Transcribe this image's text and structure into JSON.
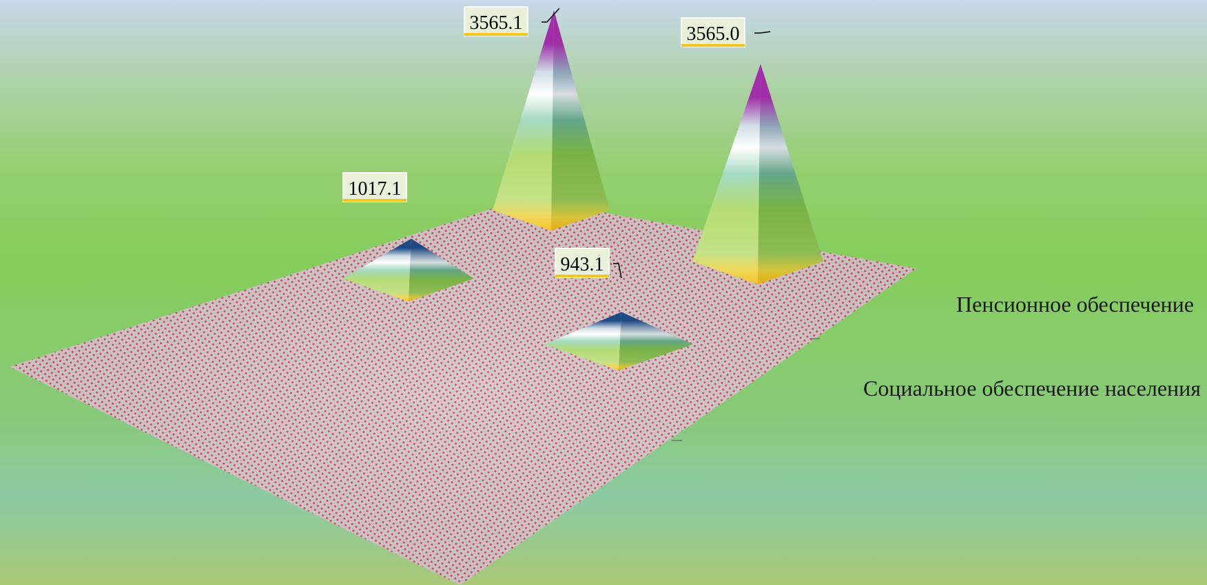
{
  "chart_data": {
    "type": "bar",
    "subtype": "3d-pyramid",
    "categories": [
      "",
      ""
    ],
    "series": [
      {
        "name": "Социальное обеспечение населения",
        "values": [
          1017.1,
          943.1
        ],
        "top_color": "#1e4a86"
      },
      {
        "name": "Пенсионное обеспечение",
        "values": [
          3565.1,
          3565.0
        ],
        "top_color": "#a02ea6"
      }
    ],
    "legend": "right",
    "grid": false,
    "floor_pattern": "red-white moire",
    "colors": {
      "floor": "#d9b8bb",
      "base_band": "#f3c51d",
      "green_band": "#9ed35a",
      "white_band": "#f4f7f8",
      "blue_top": "#1e4a86",
      "purple_top": "#a02ea6",
      "label_background": "#ffffff"
    }
  }
}
